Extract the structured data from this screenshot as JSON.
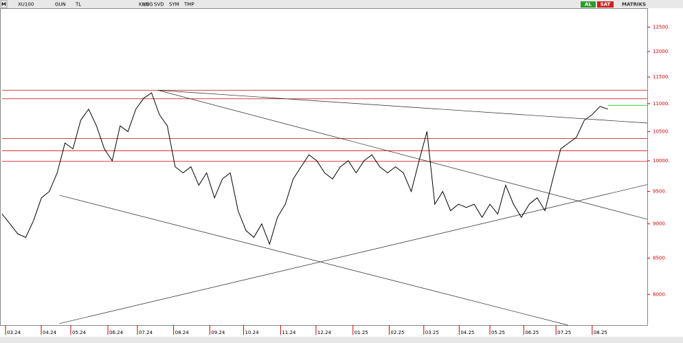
{
  "toolbar": {
    "symbol_icon": "M",
    "symbol": "XU100",
    "buttons": [
      "GUN",
      "TL",
      "LOG",
      "KHN",
      "SVD",
      "SYM",
      "TMP"
    ],
    "buy": "AL",
    "sell": "SAT",
    "brand": "MATRIKS"
  },
  "chart_data": {
    "type": "line",
    "log": true,
    "axis_color": "#cc0000",
    "x": [
      0,
      1,
      2,
      3,
      4,
      5,
      6,
      7,
      8,
      9,
      10,
      11,
      12,
      13,
      14,
      15,
      16,
      17,
      18,
      19,
      20,
      21,
      22,
      23,
      24,
      25,
      26,
      27,
      28,
      29,
      30,
      31,
      32,
      33,
      34,
      35,
      36,
      37,
      38,
      39,
      40,
      41,
      42,
      43,
      44,
      45,
      46,
      47,
      48,
      49,
      50,
      51,
      52,
      53,
      54,
      55,
      56,
      57,
      58,
      59,
      60,
      61,
      62,
      63,
      64,
      65,
      66,
      67,
      68,
      69,
      70,
      71,
      72,
      73,
      74,
      75,
      76,
      77
    ],
    "series": [
      {
        "name": "XU100",
        "color": "#000000",
        "values": [
          9150,
          9000,
          8850,
          8800,
          9050,
          9400,
          9500,
          9800,
          10300,
          10200,
          10700,
          10900,
          10600,
          10200,
          10000,
          10600,
          10500,
          10900,
          11100,
          11200,
          10800,
          10600,
          9900,
          9800,
          9900,
          9600,
          9800,
          9400,
          9700,
          9800,
          9200,
          8900,
          8800,
          9000,
          8700,
          9100,
          9300,
          9700,
          9900,
          10100,
          10000,
          9800,
          9700,
          9900,
          10000,
          9800,
          10000,
          10100,
          9900,
          9800,
          9900,
          9800,
          9500,
          10000,
          10500,
          9300,
          9500,
          9200,
          9300,
          9250,
          9300,
          9100,
          9300,
          9150,
          9600,
          9300,
          9100,
          9300,
          9400,
          9200,
          9700,
          10200,
          10300,
          10400,
          10700,
          10800,
          10950,
          10900
        ]
      }
    ],
    "levels": [
      {
        "value": 11250,
        "color": "#cc0000"
      },
      {
        "value": 11090,
        "color": "#cc0000"
      },
      {
        "value": 10380,
        "color": "#cc0000"
      },
      {
        "value": 10170,
        "color": "#cc0000"
      },
      {
        "value": 9990,
        "color": "#cc0000"
      }
    ],
    "last_price": {
      "value": 10970,
      "color": "#33cc33"
    },
    "trendlines": [
      {
        "x": [
          19.8,
          82
        ],
        "values": [
          11250,
          10650
        ]
      },
      {
        "x": [
          19.8,
          82
        ],
        "values": [
          11250,
          9070
        ]
      },
      {
        "x": [
          7.3,
          71.9
        ],
        "values": [
          9440,
          7600
        ]
      },
      {
        "x": [
          7.3,
          82
        ],
        "values": [
          7620,
          9610
        ]
      }
    ],
    "xlim": [
      0,
      82
    ],
    "ylim": [
      7600,
      12900
    ],
    "xticks": [
      {
        "value": 0.44,
        "label": "03.24"
      },
      {
        "value": 4.98,
        "label": "04.24"
      },
      {
        "value": 8.73,
        "label": "05.24"
      },
      {
        "value": 13.45,
        "label": "06.24"
      },
      {
        "value": 17.2,
        "label": "07.24"
      },
      {
        "value": 21.8,
        "label": "08.24"
      },
      {
        "value": 26.4,
        "label": "09.24"
      },
      {
        "value": 30.7,
        "label": "10.24"
      },
      {
        "value": 35.4,
        "label": "11.24"
      },
      {
        "value": 39.9,
        "label": "12.24"
      },
      {
        "value": 44.6,
        "label": "01.25"
      },
      {
        "value": 49.2,
        "label": "02.25"
      },
      {
        "value": 53.6,
        "label": "03.25"
      },
      {
        "value": 58.1,
        "label": "04.25"
      },
      {
        "value": 62.0,
        "label": "05.25"
      },
      {
        "value": 66.3,
        "label": "06.25"
      },
      {
        "value": 70.4,
        "label": "07.25"
      },
      {
        "value": 75.0,
        "label": "08.25"
      }
    ],
    "yticks": [
      {
        "value": 12500,
        "label": "12500."
      },
      {
        "value": 12000,
        "label": "12000."
      },
      {
        "value": 11500,
        "label": "11500."
      },
      {
        "value": 11000,
        "label": "11000."
      },
      {
        "value": 10500,
        "label": "10500."
      },
      {
        "value": 10000,
        "label": "10000."
      },
      {
        "value": 9500,
        "label": "9500."
      },
      {
        "value": 9000,
        "label": "9000."
      },
      {
        "value": 8500,
        "label": "8500."
      },
      {
        "value": 8000,
        "label": "8000."
      }
    ]
  }
}
